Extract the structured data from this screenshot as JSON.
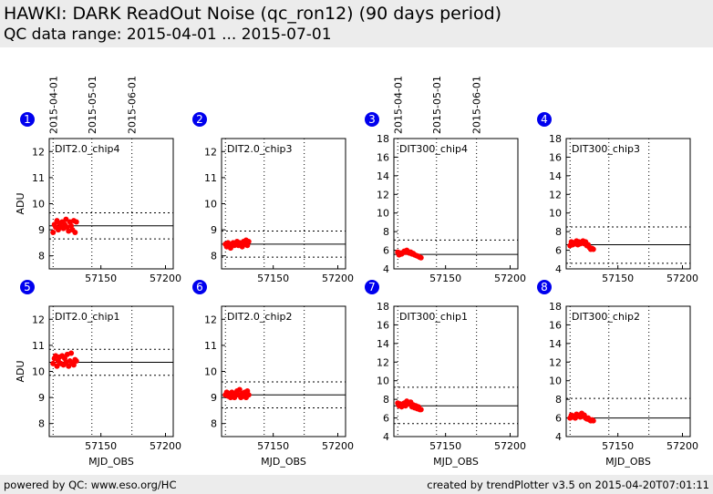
{
  "header": {
    "title": "HAWKI: DARK ReadOut Noise (qc_ron12) (90 days period)",
    "subtitle": "QC data range: 2015-04-01 ... 2015-07-01"
  },
  "footer": {
    "left": "powered by QC: www.eso.org/HC",
    "right": "created by trendPlotter v3.5 on 2015-04-20T07:01:11"
  },
  "date_markers": [
    {
      "label": "2015-04-01",
      "mjd": 57113
    },
    {
      "label": "2015-05-01",
      "mjd": 57143
    },
    {
      "label": "2015-06-01",
      "mjd": 57174
    }
  ],
  "colors": {
    "points": "#ff0000",
    "badge": "#0000ee",
    "grid": "#000000"
  },
  "chart_data": [
    {
      "type": "scatter",
      "panel": "1",
      "label": "DIT2.0_chip4",
      "xlabel": "",
      "ylabel": "ADU",
      "xlim": [
        57110,
        57206
      ],
      "ylim": [
        7.5,
        12.5
      ],
      "yticks": [
        8,
        9,
        10,
        11,
        12
      ],
      "xticks": [
        57150,
        57200
      ],
      "mean": 9.15,
      "upper": 9.65,
      "lower": 8.65,
      "points": [
        [
          57113,
          8.9
        ],
        [
          57114,
          9.2
        ],
        [
          57115,
          9.1
        ],
        [
          57116,
          9.35
        ],
        [
          57117,
          9.0
        ],
        [
          57118,
          9.25
        ],
        [
          57119,
          9.1
        ],
        [
          57120,
          9.3
        ],
        [
          57121,
          9.05
        ],
        [
          57122,
          9.2
        ],
        [
          57123,
          9.4
        ],
        [
          57124,
          9.1
        ],
        [
          57125,
          8.95
        ],
        [
          57126,
          9.3
        ],
        [
          57127,
          9.15
        ],
        [
          57128,
          9.0
        ],
        [
          57129,
          9.35
        ],
        [
          57130,
          8.9
        ],
        [
          57131,
          9.3
        ]
      ]
    },
    {
      "type": "scatter",
      "panel": "2",
      "label": "DIT2.0_chip3",
      "xlabel": "",
      "ylabel": "",
      "xlim": [
        57110,
        57206
      ],
      "ylim": [
        7.5,
        12.5
      ],
      "yticks": [
        8,
        9,
        10,
        11,
        12
      ],
      "xticks": [
        57150,
        57200
      ],
      "mean": 8.45,
      "upper": 8.95,
      "lower": 7.95,
      "points": [
        [
          57113,
          8.45
        ],
        [
          57114,
          8.35
        ],
        [
          57115,
          8.5
        ],
        [
          57116,
          8.4
        ],
        [
          57117,
          8.3
        ],
        [
          57118,
          8.45
        ],
        [
          57119,
          8.5
        ],
        [
          57120,
          8.4
        ],
        [
          57121,
          8.45
        ],
        [
          57122,
          8.55
        ],
        [
          57123,
          8.4
        ],
        [
          57124,
          8.5
        ],
        [
          57125,
          8.45
        ],
        [
          57126,
          8.35
        ],
        [
          57127,
          8.55
        ],
        [
          57128,
          8.45
        ],
        [
          57129,
          8.6
        ],
        [
          57130,
          8.4
        ],
        [
          57131,
          8.55
        ]
      ]
    },
    {
      "type": "scatter",
      "panel": "3",
      "label": "DIT300_chip4",
      "xlabel": "",
      "ylabel": "",
      "xlim": [
        57110,
        57206
      ],
      "ylim": [
        4,
        18
      ],
      "yticks": [
        4,
        6,
        8,
        10,
        12,
        14,
        16,
        18
      ],
      "xticks": [
        57150,
        57200
      ],
      "mean": 5.55,
      "upper": 7.1,
      "lower": 4.0,
      "points": [
        [
          57113,
          5.8
        ],
        [
          57114,
          5.5
        ],
        [
          57115,
          5.7
        ],
        [
          57116,
          5.6
        ],
        [
          57117,
          5.75
        ],
        [
          57118,
          5.9
        ],
        [
          57119,
          5.8
        ],
        [
          57120,
          6.0
        ],
        [
          57121,
          5.85
        ],
        [
          57122,
          5.7
        ],
        [
          57123,
          5.8
        ],
        [
          57124,
          5.6
        ],
        [
          57125,
          5.65
        ],
        [
          57126,
          5.5
        ],
        [
          57127,
          5.45
        ],
        [
          57128,
          5.4
        ],
        [
          57129,
          5.35
        ],
        [
          57130,
          5.25
        ],
        [
          57131,
          5.2
        ]
      ]
    },
    {
      "type": "scatter",
      "panel": "4",
      "label": "DIT300_chip3",
      "xlabel": "",
      "ylabel": "",
      "xlim": [
        57110,
        57206
      ],
      "ylim": [
        4,
        18
      ],
      "yticks": [
        4,
        6,
        8,
        10,
        12,
        14,
        16,
        18
      ],
      "xticks": [
        57150,
        57200
      ],
      "mean": 6.6,
      "upper": 8.5,
      "lower": 4.6,
      "points": [
        [
          57113,
          6.5
        ],
        [
          57114,
          6.9
        ],
        [
          57115,
          6.6
        ],
        [
          57116,
          6.8
        ],
        [
          57117,
          6.7
        ],
        [
          57118,
          7.0
        ],
        [
          57119,
          6.6
        ],
        [
          57120,
          6.9
        ],
        [
          57121,
          6.7
        ],
        [
          57122,
          6.8
        ],
        [
          57123,
          7.0
        ],
        [
          57124,
          6.7
        ],
        [
          57125,
          6.9
        ],
        [
          57126,
          6.5
        ],
        [
          57127,
          6.6
        ],
        [
          57128,
          6.3
        ],
        [
          57129,
          6.1
        ],
        [
          57130,
          6.2
        ],
        [
          57131,
          6.1
        ]
      ]
    },
    {
      "type": "scatter",
      "panel": "5",
      "label": "DIT2.0_chip1",
      "xlabel": "MJD_OBS",
      "ylabel": "ADU",
      "xlim": [
        57110,
        57206
      ],
      "ylim": [
        7.5,
        12.5
      ],
      "yticks": [
        8,
        9,
        10,
        11,
        12
      ],
      "xticks": [
        57150,
        57200
      ],
      "mean": 10.35,
      "upper": 10.85,
      "lower": 9.85,
      "points": [
        [
          57113,
          10.3
        ],
        [
          57114,
          10.5
        ],
        [
          57115,
          10.6
        ],
        [
          57116,
          10.2
        ],
        [
          57117,
          10.4
        ],
        [
          57118,
          10.55
        ],
        [
          57119,
          10.3
        ],
        [
          57120,
          10.6
        ],
        [
          57121,
          10.25
        ],
        [
          57122,
          10.5
        ],
        [
          57123,
          10.35
        ],
        [
          57124,
          10.65
        ],
        [
          57125,
          10.2
        ],
        [
          57126,
          10.4
        ],
        [
          57127,
          10.7
        ],
        [
          57128,
          10.3
        ],
        [
          57129,
          10.25
        ],
        [
          57130,
          10.45
        ],
        [
          57131,
          10.4
        ]
      ]
    },
    {
      "type": "scatter",
      "panel": "6",
      "label": "DIT2.0_chip2",
      "xlabel": "MJD_OBS",
      "ylabel": "",
      "xlim": [
        57110,
        57206
      ],
      "ylim": [
        7.5,
        12.5
      ],
      "yticks": [
        8,
        9,
        10,
        11,
        12
      ],
      "xticks": [
        57150,
        57200
      ],
      "mean": 9.1,
      "upper": 9.6,
      "lower": 8.6,
      "points": [
        [
          57113,
          9.1
        ],
        [
          57114,
          9.2
        ],
        [
          57115,
          9.05
        ],
        [
          57116,
          9.15
        ],
        [
          57117,
          9.0
        ],
        [
          57118,
          9.2
        ],
        [
          57119,
          9.1
        ],
        [
          57120,
          9.0
        ],
        [
          57121,
          9.15
        ],
        [
          57122,
          9.25
        ],
        [
          57123,
          9.1
        ],
        [
          57124,
          9.3
        ],
        [
          57125,
          9.0
        ],
        [
          57126,
          9.15
        ],
        [
          57127,
          9.05
        ],
        [
          57128,
          9.2
        ],
        [
          57129,
          9.0
        ],
        [
          57130,
          9.25
        ],
        [
          57131,
          9.1
        ]
      ]
    },
    {
      "type": "scatter",
      "panel": "7",
      "label": "DIT300_chip1",
      "xlabel": "MJD_OBS",
      "ylabel": "",
      "xlim": [
        57110,
        57206
      ],
      "ylim": [
        4,
        18
      ],
      "yticks": [
        4,
        6,
        8,
        10,
        12,
        14,
        16,
        18
      ],
      "xticks": [
        57150,
        57200
      ],
      "mean": 7.3,
      "upper": 9.3,
      "lower": 5.4,
      "points": [
        [
          57113,
          7.6
        ],
        [
          57114,
          7.3
        ],
        [
          57115,
          7.5
        ],
        [
          57116,
          7.2
        ],
        [
          57117,
          7.4
        ],
        [
          57118,
          7.6
        ],
        [
          57119,
          7.3
        ],
        [
          57120,
          7.8
        ],
        [
          57121,
          7.5
        ],
        [
          57122,
          7.6
        ],
        [
          57123,
          7.7
        ],
        [
          57124,
          7.2
        ],
        [
          57125,
          7.4
        ],
        [
          57126,
          7.1
        ],
        [
          57127,
          7.3
        ],
        [
          57128,
          7.0
        ],
        [
          57129,
          7.2
        ],
        [
          57130,
          6.9
        ],
        [
          57131,
          6.9
        ]
      ]
    },
    {
      "type": "scatter",
      "panel": "8",
      "label": "DIT300_chip2",
      "xlabel": "MJD_OBS",
      "ylabel": "",
      "xlim": [
        57110,
        57206
      ],
      "ylim": [
        4,
        18
      ],
      "yticks": [
        4,
        6,
        8,
        10,
        12,
        14,
        16,
        18
      ],
      "xticks": [
        57150,
        57200
      ],
      "mean": 6.0,
      "upper": 8.1,
      "lower": 4.0,
      "points": [
        [
          57113,
          6.0
        ],
        [
          57114,
          6.3
        ],
        [
          57115,
          6.1
        ],
        [
          57116,
          6.2
        ],
        [
          57117,
          6.0
        ],
        [
          57118,
          6.4
        ],
        [
          57119,
          6.2
        ],
        [
          57120,
          6.3
        ],
        [
          57121,
          6.1
        ],
        [
          57122,
          6.5
        ],
        [
          57123,
          6.2
        ],
        [
          57124,
          6.3
        ],
        [
          57125,
          6.0
        ],
        [
          57126,
          5.9
        ],
        [
          57127,
          6.0
        ],
        [
          57128,
          5.8
        ],
        [
          57129,
          5.7
        ],
        [
          57130,
          5.8
        ],
        [
          57131,
          5.7
        ]
      ]
    }
  ]
}
